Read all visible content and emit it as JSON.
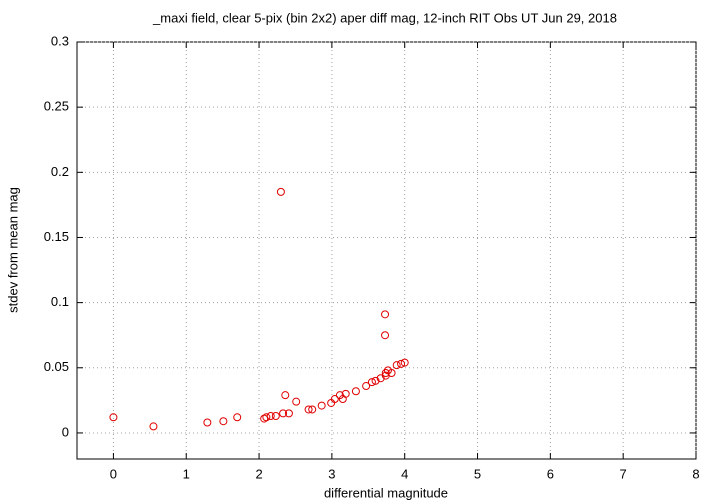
{
  "chart_data": {
    "type": "scatter",
    "title": "_maxi field, clear 5-pix (bin 2x2) aper diff mag,  12-inch RIT Obs UT Jun 29, 2018",
    "xlabel": "differential magnitude",
    "ylabel": "stdev from mean mag",
    "color": "#e00000",
    "grid": true,
    "xlim": [
      -0.5,
      8
    ],
    "ylim": [
      -0.02,
      0.3
    ],
    "xticks": [
      0,
      1,
      2,
      3,
      4,
      5,
      6,
      7,
      8
    ],
    "yticks": [
      0,
      0.05,
      0.1,
      0.15,
      0.2,
      0.25,
      0.3
    ],
    "x": [
      0,
      0.55,
      1.29,
      1.51,
      1.7,
      2.07,
      2.1,
      2.16,
      2.23,
      2.33,
      2.3,
      2.36,
      2.41,
      2.51,
      2.68,
      2.73,
      2.86,
      2.99,
      3.04,
      3.11,
      3.15,
      3.19,
      3.33,
      3.47,
      3.55,
      3.6,
      3.67,
      3.73,
      3.73,
      3.74,
      3.74,
      3.77,
      3.82,
      3.89,
      3.95,
      4.0
    ],
    "values": [
      0.012,
      0.005,
      0.008,
      0.009,
      0.012,
      0.011,
      0.012,
      0.013,
      0.013,
      0.015,
      0.185,
      0.029,
      0.015,
      0.024,
      0.018,
      0.018,
      0.021,
      0.023,
      0.026,
      0.029,
      0.026,
      0.03,
      0.032,
      0.036,
      0.039,
      0.04,
      0.042,
      0.091,
      0.075,
      0.044,
      0.046,
      0.048,
      0.046,
      0.052,
      0.053,
      0.054
    ]
  }
}
